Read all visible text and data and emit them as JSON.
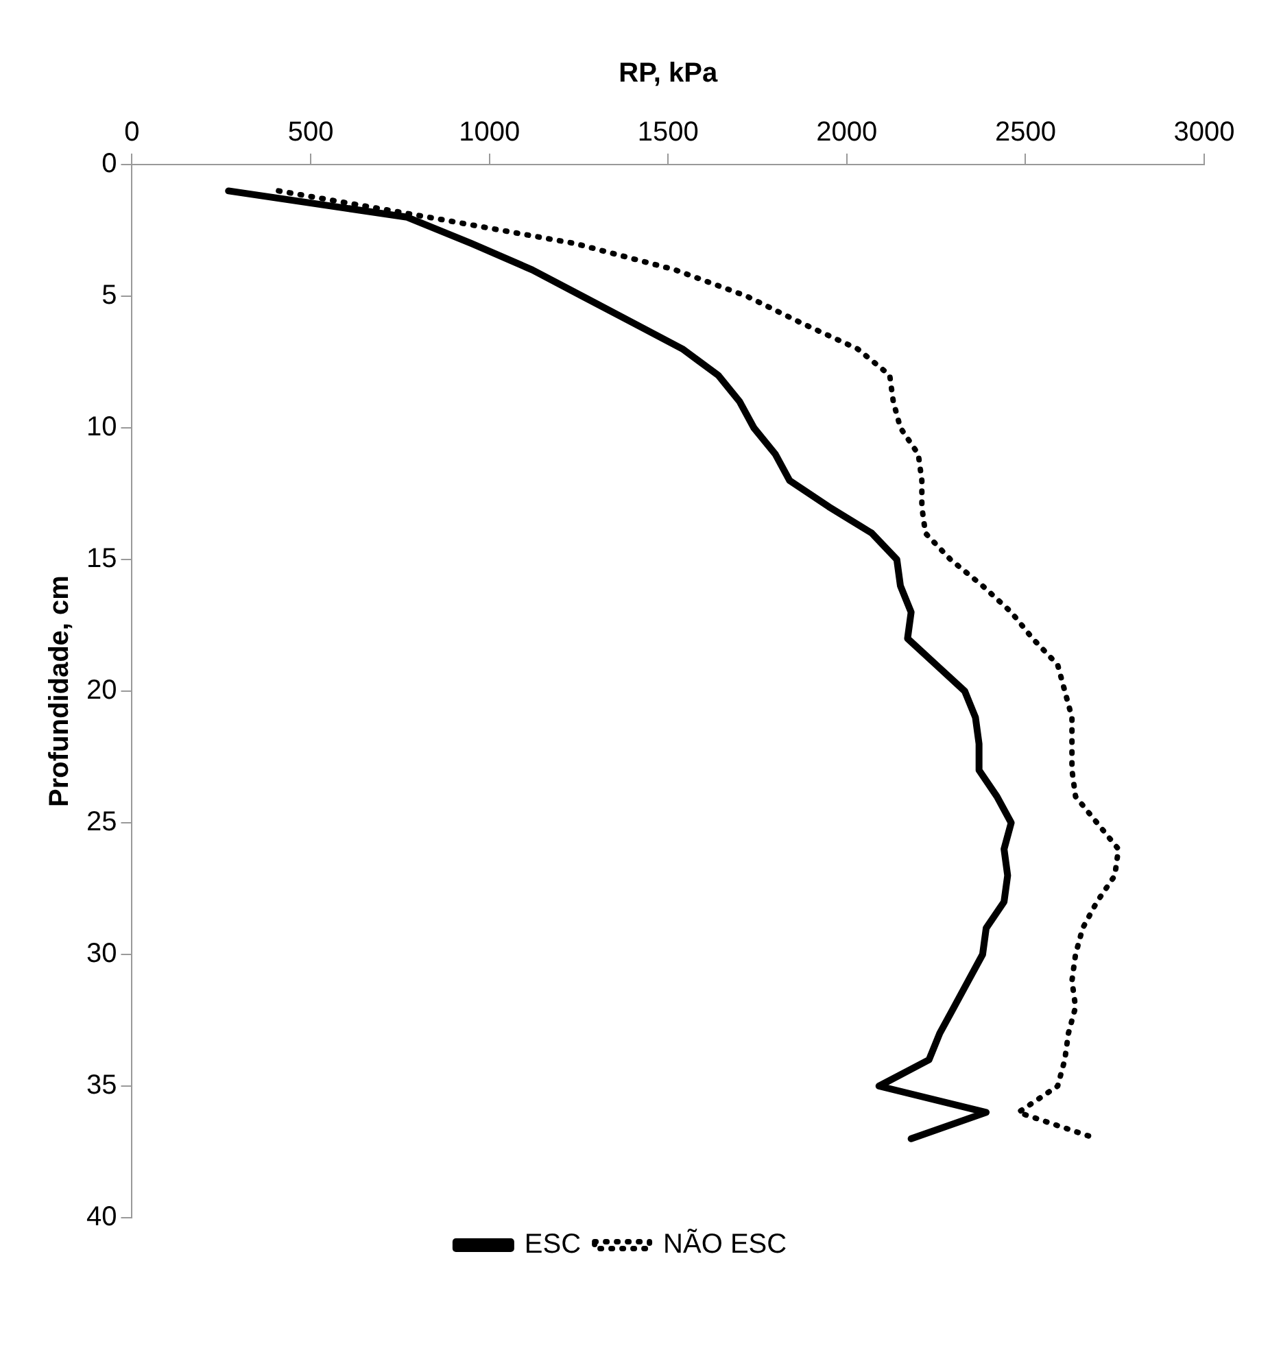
{
  "chart_data": {
    "type": "line",
    "xlabel": "RP, kPa",
    "ylabel": "Profundidade, cm",
    "xlim": [
      0,
      3000
    ],
    "xticks": [
      0,
      500,
      1000,
      1500,
      2000,
      2500,
      3000
    ],
    "ylim": [
      40,
      0
    ],
    "yticks": [
      0,
      5,
      10,
      15,
      20,
      25,
      30,
      35,
      40
    ],
    "grid": false,
    "legend": "bottom",
    "marker": "none",
    "series": [
      {
        "name": "ESC",
        "color": "#000000",
        "line_style": "solid",
        "x": [
          270,
          770,
          950,
          1120,
          1260,
          1400,
          1540,
          1640,
          1700,
          1740,
          1800,
          1840,
          1950,
          2070,
          2140,
          2150,
          2180,
          2170,
          2250,
          2330,
          2360,
          2370,
          2370,
          2420,
          2460,
          2440,
          2450,
          2440,
          2390,
          2380,
          2340,
          2300,
          2260,
          2230,
          2090,
          2390,
          2180
        ],
        "values": [
          1,
          2,
          3,
          4,
          5,
          6,
          7,
          8,
          9,
          10,
          11,
          12,
          13,
          14,
          15,
          16,
          17,
          18,
          19,
          20,
          21,
          22,
          23,
          24,
          25,
          26,
          27,
          28,
          29,
          30,
          31,
          32,
          33,
          34,
          35,
          36,
          37
        ]
      },
      {
        "name": "NÃO ESC",
        "color": "#000000",
        "line_style": "dotted",
        "x": [
          410,
          830,
          1240,
          1520,
          1720,
          1870,
          2030,
          2120,
          2130,
          2150,
          2200,
          2210,
          2210,
          2220,
          2290,
          2380,
          2460,
          2520,
          2590,
          2610,
          2630,
          2630,
          2630,
          2640,
          2700,
          2760,
          2750,
          2700,
          2660,
          2640,
          2630,
          2640,
          2620,
          2610,
          2590,
          2480,
          2700
        ],
        "values": [
          1,
          2,
          3,
          4,
          5,
          6,
          7,
          8,
          9,
          10,
          11,
          12,
          13,
          14,
          15,
          16,
          17,
          18,
          19,
          20,
          21,
          22,
          23,
          24,
          25,
          26,
          27,
          28,
          29,
          30,
          31,
          32,
          33,
          34,
          35,
          36,
          37
        ]
      }
    ]
  }
}
